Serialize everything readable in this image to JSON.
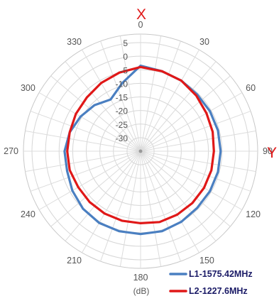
{
  "chart_data": {
    "type": "polar-line",
    "axis_letters": {
      "top": "X",
      "right": "Y"
    },
    "unit": "(dB)",
    "radial_ticks": [
      5,
      0,
      -5,
      -10,
      -15,
      -20,
      -25,
      -30
    ],
    "r_range": [
      -35,
      5
    ],
    "angle_ticks": [
      0,
      30,
      60,
      90,
      120,
      150,
      180,
      210,
      240,
      270,
      300,
      330
    ],
    "angle_labels": [
      "0",
      "30",
      "60",
      "90",
      "120",
      "150",
      "180",
      "210",
      "240",
      "270",
      "300",
      "330"
    ],
    "legend_placement": "bottom-right",
    "angles": [
      0,
      15,
      30,
      45,
      60,
      75,
      90,
      105,
      120,
      135,
      150,
      165,
      180,
      195,
      210,
      225,
      240,
      255,
      270,
      285,
      300,
      315,
      330,
      345
    ],
    "series": [
      {
        "name": "L1-1575.42MHz",
        "color": "#4a7fc1",
        "values": [
          -3.5,
          -4.5,
          -5,
          -5.5,
          -5.5,
          -5.5,
          -5.5,
          -5.5,
          -5.5,
          -5.5,
          -5,
          -4.5,
          -4.5,
          -4.5,
          -4.5,
          -5,
          -6,
          -7,
          -7,
          -8,
          -9.5,
          -11,
          -13,
          -9
        ]
      },
      {
        "name": "L2-1227.6MHz",
        "color": "#e01818",
        "values": [
          -4,
          -4.5,
          -5,
          -6,
          -7,
          -7.5,
          -8,
          -8,
          -8,
          -8,
          -8,
          -8,
          -8.5,
          -8.5,
          -8.5,
          -8.5,
          -8.5,
          -8,
          -8,
          -8,
          -7.5,
          -7,
          -6,
          -5
        ]
      }
    ]
  }
}
